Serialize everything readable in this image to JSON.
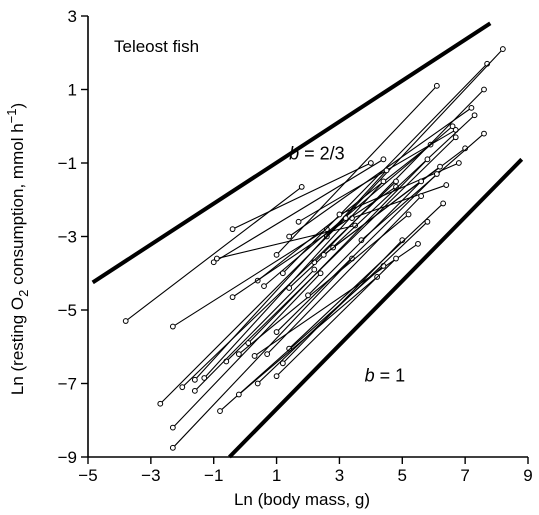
{
  "chart_data": {
    "type": "line",
    "title": "",
    "panel_label": "Teleost fish",
    "xlabel": "Ln (body mass, g)",
    "ylabel_prefix": "Ln (resting O",
    "ylabel_sub": "2",
    "ylabel_mid": " consumption, mmol h",
    "ylabel_sup": "−1",
    "ylabel_suffix": ")",
    "xlim": [
      -5,
      9
    ],
    "ylim": [
      -9,
      3
    ],
    "xticks": [
      -5,
      -3,
      -1,
      1,
      3,
      5,
      7,
      9
    ],
    "yticks": [
      -9,
      -7,
      -5,
      -3,
      -1,
      1,
      3
    ],
    "xtick_labels": [
      "−5",
      "−3",
      "−1",
      "1",
      "3",
      "5",
      "7",
      "9"
    ],
    "ytick_labels": [
      "−9",
      "−7",
      "−5",
      "−3",
      "−1",
      "1",
      "3"
    ],
    "grid": false,
    "reference_lines": [
      {
        "label_var": "b",
        "label_eq": " = 2/3",
        "label_at": [
          1.4,
          -0.9
        ],
        "x": [
          -4.85,
          7.8
        ],
        "y": [
          -4.25,
          2.8
        ]
      },
      {
        "label_var": "b",
        "label_eq": " = 1",
        "label_at": [
          3.8,
          -6.95
        ],
        "x": [
          -0.5,
          8.8
        ],
        "y": [
          -9.0,
          -0.9
        ]
      }
    ],
    "series": [
      {
        "points": [
          [
            -3.8,
            -5.3
          ],
          [
            1.8,
            -1.65
          ]
        ]
      },
      {
        "points": [
          [
            -2.3,
            -5.45
          ],
          [
            2.6,
            -2.8
          ]
        ]
      },
      {
        "points": [
          [
            -1.0,
            -3.7
          ],
          [
            4.4,
            -0.9
          ]
        ]
      },
      {
        "points": [
          [
            -0.4,
            -2.8
          ],
          [
            4.0,
            -1.0
          ]
        ]
      },
      {
        "points": [
          [
            -0.9,
            -3.6
          ],
          [
            3.5,
            -2.7
          ]
        ]
      },
      {
        "points": [
          [
            0.4,
            -4.2
          ],
          [
            5.9,
            -0.5
          ]
        ]
      },
      {
        "points": [
          [
            -0.4,
            -4.65
          ],
          [
            4.8,
            -1.65
          ]
        ]
      },
      {
        "points": [
          [
            1.0,
            -3.5
          ],
          [
            6.1,
            1.1
          ]
        ]
      },
      {
        "points": [
          [
            1.4,
            -3.0
          ],
          [
            7.2,
            0.5
          ]
        ]
      },
      {
        "points": [
          [
            1.7,
            -2.6
          ],
          [
            6.7,
            -0.1
          ]
        ]
      },
      {
        "points": [
          [
            0.6,
            -4.35
          ],
          [
            6.6,
            0.0
          ]
        ]
      },
      {
        "points": [
          [
            1.4,
            -4.4
          ],
          [
            7.3,
            0.3
          ]
        ]
      },
      {
        "points": [
          [
            2.2,
            -3.7
          ],
          [
            7.6,
            1.0
          ]
        ]
      },
      {
        "points": [
          [
            1.2,
            -4.0
          ],
          [
            7.7,
            1.7
          ]
        ]
      },
      {
        "points": [
          [
            2.6,
            -3.0
          ],
          [
            8.2,
            2.1
          ]
        ]
      },
      {
        "points": [
          [
            2.8,
            -3.3
          ],
          [
            7.0,
            -0.6
          ]
        ]
      },
      {
        "points": [
          [
            3.4,
            -2.5
          ],
          [
            6.4,
            -1.6
          ]
        ]
      },
      {
        "points": [
          [
            3.7,
            -3.1
          ],
          [
            7.6,
            -0.2
          ]
        ]
      },
      {
        "points": [
          [
            3.0,
            -2.4
          ],
          [
            6.8,
            -1.0
          ]
        ]
      },
      {
        "points": [
          [
            2.5,
            -3.5
          ],
          [
            6.2,
            -1.1
          ]
        ]
      },
      {
        "points": [
          [
            -2.7,
            -7.55
          ],
          [
            3.2,
            -2.5
          ]
        ]
      },
      {
        "points": [
          [
            -2.3,
            -8.75
          ],
          [
            3.4,
            -3.6
          ]
        ]
      },
      {
        "points": [
          [
            -2.0,
            -7.1
          ],
          [
            4.8,
            -1.5
          ]
        ]
      },
      {
        "points": [
          [
            -1.6,
            -6.9
          ],
          [
            4.5,
            -1.2
          ]
        ]
      },
      {
        "points": [
          [
            -1.3,
            -6.85
          ],
          [
            4.4,
            -1.5
          ]
        ]
      },
      {
        "points": [
          [
            -0.6,
            -6.4
          ],
          [
            6.7,
            -0.3
          ]
        ]
      },
      {
        "points": [
          [
            -0.2,
            -6.2
          ],
          [
            5.2,
            -2.4
          ]
        ]
      },
      {
        "points": [
          [
            0.1,
            -5.9
          ],
          [
            5.8,
            -0.9
          ]
        ]
      },
      {
        "points": [
          [
            0.3,
            -6.25
          ],
          [
            5.5,
            -3.2
          ]
        ]
      },
      {
        "points": [
          [
            0.7,
            -6.2
          ],
          [
            5.6,
            -1.9
          ]
        ]
      },
      {
        "points": [
          [
            1.0,
            -5.6
          ],
          [
            6.1,
            -1.3
          ]
        ]
      },
      {
        "points": [
          [
            1.2,
            -6.45
          ],
          [
            5.0,
            -3.1
          ]
        ]
      },
      {
        "points": [
          [
            1.4,
            -6.05
          ],
          [
            6.3,
            -2.1
          ]
        ]
      },
      {
        "points": [
          [
            -0.8,
            -7.75
          ],
          [
            4.4,
            -3.8
          ]
        ]
      },
      {
        "points": [
          [
            -0.2,
            -7.3
          ],
          [
            4.2,
            -4.1
          ]
        ]
      },
      {
        "points": [
          [
            0.4,
            -7.0
          ],
          [
            5.8,
            -2.6
          ]
        ]
      },
      {
        "points": [
          [
            1.0,
            -6.8
          ],
          [
            4.8,
            -3.6
          ]
        ]
      },
      {
        "points": [
          [
            -2.3,
            -8.2
          ],
          [
            2.4,
            -4.0
          ]
        ]
      },
      {
        "points": [
          [
            2.0,
            -4.6
          ],
          [
            5.6,
            -1.5
          ]
        ]
      },
      {
        "points": [
          [
            -1.6,
            -7.2
          ],
          [
            2.2,
            -3.9
          ]
        ]
      }
    ]
  }
}
